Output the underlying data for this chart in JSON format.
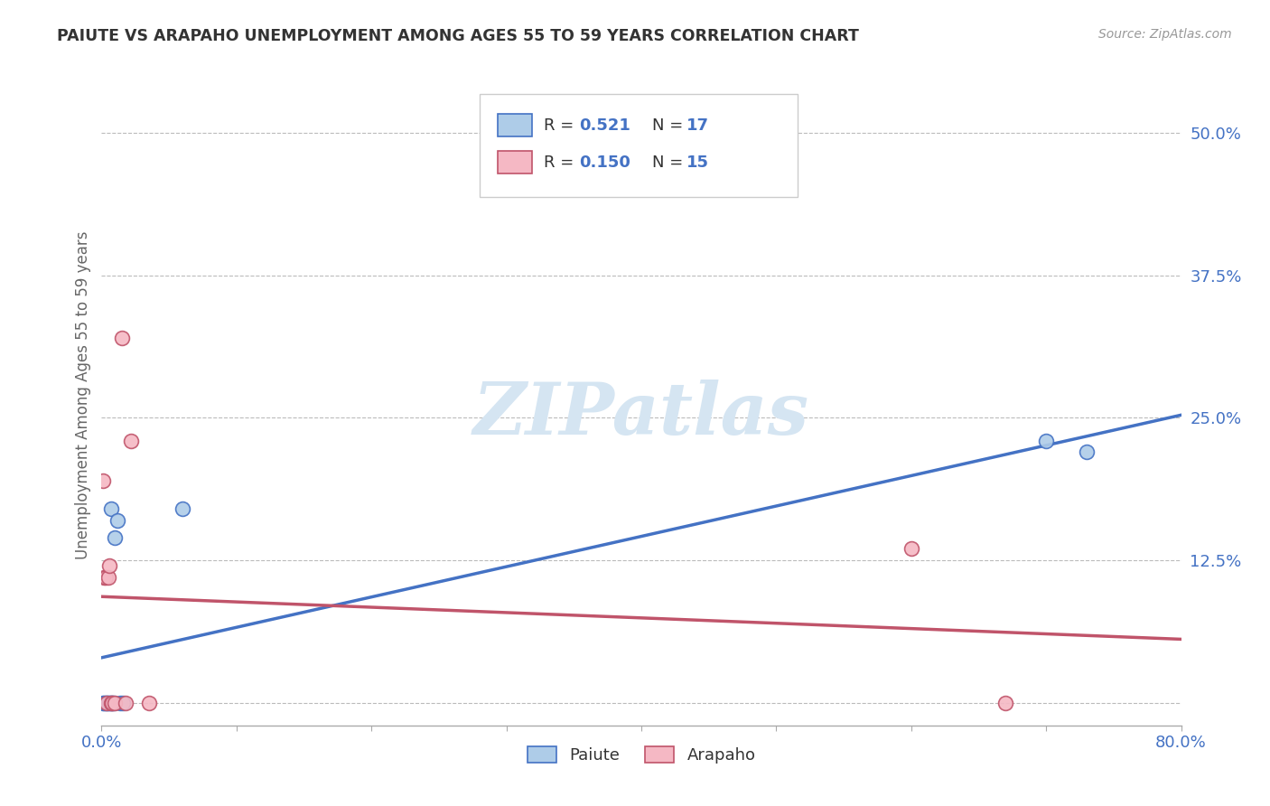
{
  "title": "PAIUTE VS ARAPAHO UNEMPLOYMENT AMONG AGES 55 TO 59 YEARS CORRELATION CHART",
  "source": "Source: ZipAtlas.com",
  "ylabel": "Unemployment Among Ages 55 to 59 years",
  "xlim": [
    0.0,
    0.8
  ],
  "ylim": [
    -0.02,
    0.56
  ],
  "xticks": [
    0.0,
    0.1,
    0.2,
    0.3,
    0.4,
    0.5,
    0.6,
    0.7,
    0.8
  ],
  "xticklabels": [
    "0.0%",
    "",
    "",
    "",
    "",
    "",
    "",
    "",
    "80.0%"
  ],
  "ytick_positions": [
    0.0,
    0.125,
    0.25,
    0.375,
    0.5
  ],
  "ytick_labels": [
    "",
    "12.5%",
    "25.0%",
    "37.5%",
    "50.0%"
  ],
  "paiute_x": [
    0.001,
    0.002,
    0.003,
    0.004,
    0.005,
    0.006,
    0.007,
    0.007,
    0.008,
    0.009,
    0.01,
    0.012,
    0.014,
    0.016,
    0.06,
    0.7,
    0.73
  ],
  "paiute_y": [
    0.0,
    0.0,
    0.0,
    0.0,
    0.0,
    0.0,
    0.0,
    0.17,
    0.0,
    0.0,
    0.145,
    0.16,
    0.0,
    0.0,
    0.17,
    0.23,
    0.22
  ],
  "arapaho_x": [
    0.001,
    0.002,
    0.003,
    0.004,
    0.005,
    0.006,
    0.007,
    0.008,
    0.01,
    0.015,
    0.018,
    0.022,
    0.035,
    0.6,
    0.67
  ],
  "arapaho_y": [
    0.195,
    0.11,
    0.11,
    0.0,
    0.11,
    0.12,
    0.0,
    0.0,
    0.0,
    0.32,
    0.0,
    0.23,
    0.0,
    0.135,
    0.0
  ],
  "paiute_color": "#AECCE8",
  "arapaho_color": "#F5B8C4",
  "paiute_line_color": "#4472C4",
  "arapaho_line_color": "#C0546A",
  "R_paiute": 0.521,
  "N_paiute": 17,
  "R_arapaho": 0.15,
  "N_arapaho": 15,
  "watermark": "ZIPatlas",
  "watermark_color": "#D5E5F2",
  "grid_color": "#BBBBBB",
  "title_color": "#333333",
  "axis_label_color": "#666666",
  "tick_label_color": "#4472C4",
  "marker_size": 130,
  "marker_linewidth": 1.2,
  "line_linewidth": 2.5
}
